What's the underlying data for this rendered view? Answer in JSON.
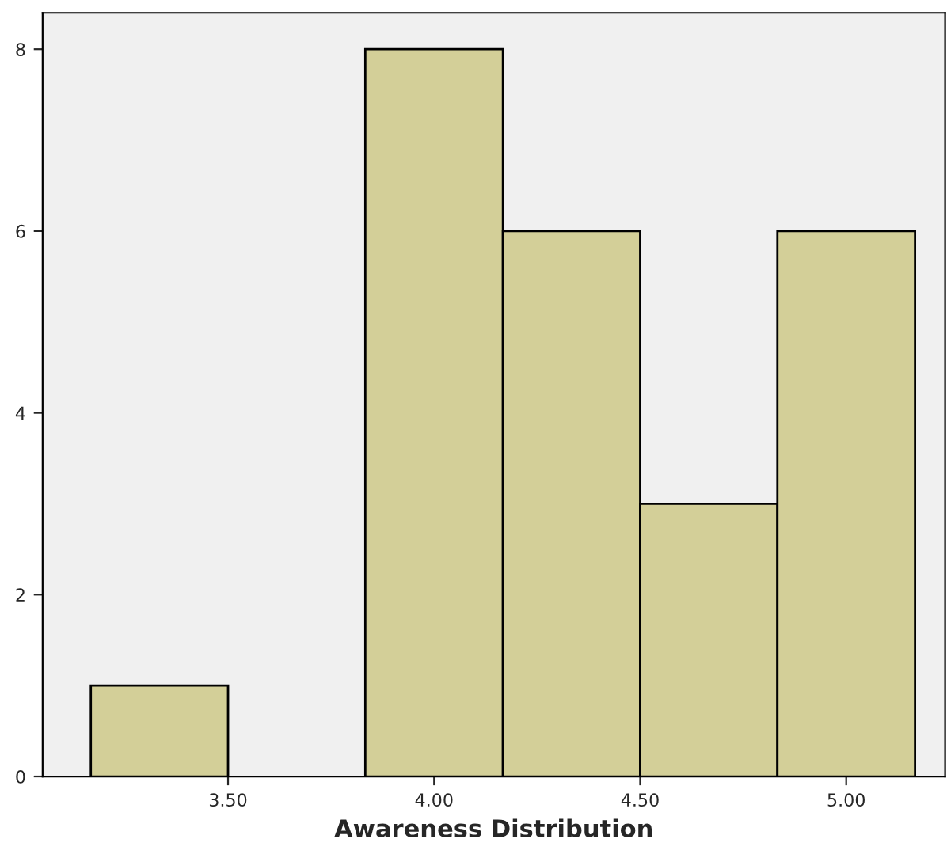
{
  "chart_data": {
    "type": "histogram",
    "xlabel": "Awareness Distribution",
    "bins": [
      3.167,
      3.5,
      3.833,
      4.167,
      4.5,
      4.833,
      5.167
    ],
    "values": [
      1,
      0,
      8,
      6,
      3,
      6
    ],
    "color": "#d3cf98",
    "xlim": [
      3.05,
      5.24
    ],
    "xticks": [
      {
        "value": 3.5,
        "label": "3.50"
      },
      {
        "value": 4.0,
        "label": "4.00"
      },
      {
        "value": 4.5,
        "label": "4.50"
      },
      {
        "value": 5.0,
        "label": "5.00"
      }
    ],
    "ylim": [
      0,
      8.4
    ],
    "yticks": [
      0,
      2,
      4,
      6,
      8
    ],
    "grid": false
  }
}
